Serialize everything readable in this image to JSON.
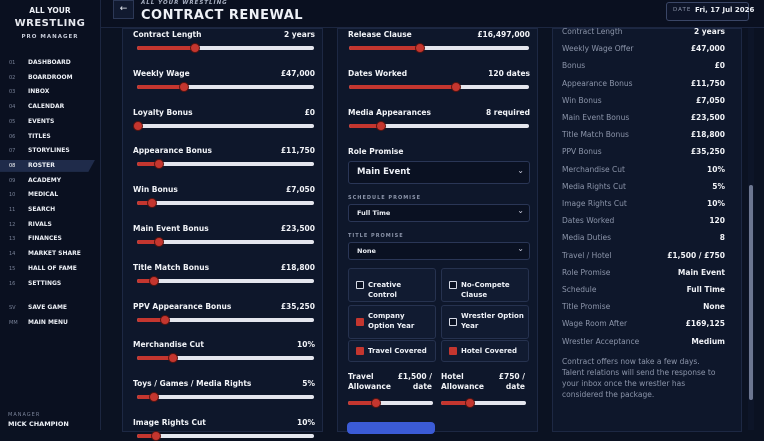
{
  "sidebar": {
    "logo": {
      "line1": "ALL YOUR",
      "line2": "WRESTLING",
      "line3": "PRO MANAGER"
    },
    "menu": [
      {
        "num": "01",
        "label": "DASHBOARD"
      },
      {
        "num": "02",
        "label": "BOARDROOM"
      },
      {
        "num": "03",
        "label": "INBOX"
      },
      {
        "num": "04",
        "label": "CALENDAR"
      },
      {
        "num": "05",
        "label": "EVENTS"
      },
      {
        "num": "06",
        "label": "TITLES"
      },
      {
        "num": "07",
        "label": "STORYLINES"
      },
      {
        "num": "08",
        "label": "ROSTER",
        "active": true
      },
      {
        "num": "09",
        "label": "ACADEMY"
      },
      {
        "num": "10",
        "label": "MEDICAL"
      },
      {
        "num": "11",
        "label": "SEARCH"
      },
      {
        "num": "12",
        "label": "RIVALS"
      },
      {
        "num": "13",
        "label": "FINANCES"
      },
      {
        "num": "14",
        "label": "MARKET SHARE"
      },
      {
        "num": "15",
        "label": "HALL OF FAME"
      },
      {
        "num": "16",
        "label": "SETTINGS"
      }
    ],
    "system": [
      {
        "num": "SV",
        "label": "SAVE GAME"
      },
      {
        "num": "MM",
        "label": "MAIN MENU"
      }
    ],
    "manager_label": "MANAGER",
    "manager_name": "MICK CHAMPION"
  },
  "header": {
    "kicker": "ALL YOUR WRESTLING",
    "title": "CONTRACT RENEWAL",
    "date_label": "DATE",
    "date": "Fri, 17 Jul 2026"
  },
  "terms": [
    {
      "label": "Contract Length",
      "value": "2 years"
    },
    {
      "label": "Weekly Wage",
      "value": "£47,000"
    },
    {
      "label": "Loyalty Bonus",
      "value": "£0"
    },
    {
      "label": "Appearance Bonus",
      "value": "£11,750"
    },
    {
      "label": "Win Bonus",
      "value": "£7,050"
    },
    {
      "label": "Main Event Bonus",
      "value": "£23,500"
    },
    {
      "label": "Title Match Bonus",
      "value": "£18,800"
    },
    {
      "label": "PPV Appearance Bonus",
      "value": "£35,250"
    },
    {
      "label": "Merchandise Cut",
      "value": "10%"
    },
    {
      "label": "Toys / Games / Media Rights",
      "value": "5%"
    },
    {
      "label": "Image Rights Cut",
      "value": "10%"
    }
  ],
  "negotiation": {
    "sliders": [
      {
        "label": "Release Clause",
        "value": "£16,497,000"
      },
      {
        "label": "Dates Worked",
        "value": "120 dates"
      },
      {
        "label": "Media Appearances",
        "value": "8 required"
      }
    ],
    "role_promise": {
      "label": "Role Promise",
      "value": "Main Event"
    },
    "schedule_promise": {
      "label": "SCHEDULE PROMISE",
      "value": "Full Time"
    },
    "title_promise": {
      "label": "TITLE PROMISE",
      "value": "None"
    },
    "options": [
      {
        "label": "Creative Control",
        "checked": false
      },
      {
        "label": "No-Compete Clause",
        "checked": false
      },
      {
        "label": "Company Option Year",
        "checked": true
      },
      {
        "label": "Wrestler Option Year",
        "checked": false
      },
      {
        "label": "Travel Covered",
        "checked": true
      },
      {
        "label": "Hotel Covered",
        "checked": true
      }
    ],
    "allowances": [
      {
        "label": "Travel Allowance",
        "value": "£1,500 / date"
      },
      {
        "label": "Hotel Allowance",
        "value": "£750 / date"
      }
    ]
  },
  "summary": {
    "rows": [
      {
        "label": "Contract Length",
        "value": "2 years"
      },
      {
        "label": "Weekly Wage Offer",
        "value": "£47,000"
      },
      {
        "label": "Bonus",
        "value": "£0"
      },
      {
        "label": "Appearance Bonus",
        "value": "£11,750"
      },
      {
        "label": "Win Bonus",
        "value": "£7,050"
      },
      {
        "label": "Main Event Bonus",
        "value": "£23,500"
      },
      {
        "label": "Title Match Bonus",
        "value": "£18,800"
      },
      {
        "label": "PPV Bonus",
        "value": "£35,250"
      },
      {
        "label": "Merchandise Cut",
        "value": "10%"
      },
      {
        "label": "Media Rights Cut",
        "value": "5%"
      },
      {
        "label": "Image Rights Cut",
        "value": "10%"
      },
      {
        "label": "Dates Worked",
        "value": "120"
      },
      {
        "label": "Media Duties",
        "value": "8"
      },
      {
        "label": "Travel / Hotel",
        "value": "£1,500 / £750"
      },
      {
        "label": "Role Promise",
        "value": "Main Event"
      },
      {
        "label": "Schedule",
        "value": "Full Time"
      },
      {
        "label": "Title Promise",
        "value": "None"
      },
      {
        "label": "Wage Room After",
        "value": "£169,125"
      },
      {
        "label": "Wrestler Acceptance",
        "value": "Medium"
      }
    ],
    "note": "Contract offers now take a few days. Talent relations will send the response to your inbox once the wrestler has considered the package."
  }
}
